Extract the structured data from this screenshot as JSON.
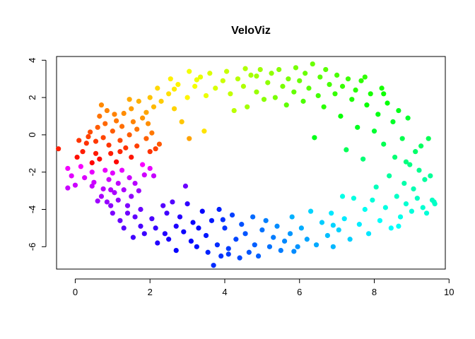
{
  "chart_data": {
    "type": "scatter",
    "title": "VeloViz",
    "xlabel": "",
    "ylabel": "",
    "xlim": [
      -0.5,
      9.9
    ],
    "ylim": [
      -7.2,
      4.2
    ],
    "xticks": [
      0,
      2,
      4,
      6,
      8,
      10
    ],
    "yticks": [
      -6,
      -4,
      -2,
      0,
      2,
      4
    ],
    "xtick_labels": [
      "0",
      "2",
      "4",
      "6",
      "8",
      "10"
    ],
    "ytick_labels": [
      "-6",
      "-4",
      "-2",
      "0",
      "2",
      "4"
    ],
    "grid": false,
    "legend": "none",
    "color_encoding": "rainbow hue by position along the ring (red → orange → yellow → green → cyan → blue → purple → magenta)",
    "points": [
      [
        -0.45,
        -0.75
      ],
      [
        -0.2,
        -1.8
      ],
      [
        -0.2,
        -2.85
      ],
      [
        -0.1,
        -2.2
      ],
      [
        0.0,
        -2.7
      ],
      [
        0.05,
        -1.2
      ],
      [
        0.1,
        -0.3
      ],
      [
        0.15,
        -1.7
      ],
      [
        0.2,
        -0.9
      ],
      [
        0.25,
        -2.3
      ],
      [
        0.3,
        -0.45
      ],
      [
        0.35,
        -0.1
      ],
      [
        0.4,
        0.15
      ],
      [
        0.45,
        -1.5
      ],
      [
        0.45,
        -2.0
      ],
      [
        0.5,
        -2.55
      ],
      [
        0.55,
        -1.0
      ],
      [
        0.6,
        0.4
      ],
      [
        0.6,
        -3.55
      ],
      [
        0.65,
        -1.3
      ],
      [
        0.65,
        1.0
      ],
      [
        0.7,
        1.6
      ],
      [
        0.7,
        -3.3
      ],
      [
        0.75,
        -0.15
      ],
      [
        0.75,
        -2.9
      ],
      [
        0.8,
        0.6
      ],
      [
        0.8,
        -1.9
      ],
      [
        0.85,
        1.3
      ],
      [
        0.85,
        -3.6
      ],
      [
        0.9,
        -2.4
      ],
      [
        0.9,
        -0.55
      ],
      [
        0.95,
        -1.0
      ],
      [
        0.95,
        -3.8
      ],
      [
        1.0,
        0.2
      ],
      [
        1.0,
        -2.05
      ],
      [
        1.0,
        -4.2
      ],
      [
        1.05,
        1.1
      ],
      [
        1.05,
        -3.1
      ],
      [
        1.1,
        0.75
      ],
      [
        1.1,
        -1.45
      ],
      [
        1.15,
        -2.6
      ],
      [
        1.15,
        -3.5
      ],
      [
        1.2,
        -0.3
      ],
      [
        1.2,
        -4.6
      ],
      [
        1.25,
        0.45
      ],
      [
        1.25,
        -1.9
      ],
      [
        1.3,
        1.15
      ],
      [
        1.3,
        -2.95
      ],
      [
        1.3,
        -5.0
      ],
      [
        1.35,
        -0.7
      ],
      [
        1.4,
        -3.8
      ],
      [
        1.4,
        -4.2
      ],
      [
        1.45,
        0.0
      ],
      [
        1.45,
        -2.3
      ],
      [
        1.5,
        1.4
      ],
      [
        1.5,
        -1.2
      ],
      [
        1.5,
        -3.3
      ],
      [
        1.55,
        0.7
      ],
      [
        1.55,
        -5.5
      ],
      [
        1.6,
        -4.4
      ],
      [
        1.6,
        -2.6
      ],
      [
        1.65,
        0.3
      ],
      [
        1.65,
        -0.6
      ],
      [
        1.7,
        1.8
      ],
      [
        1.7,
        -3.0
      ],
      [
        1.75,
        -4.0
      ],
      [
        1.75,
        -4.9
      ],
      [
        1.8,
        0.9
      ],
      [
        1.8,
        -1.6
      ],
      [
        1.85,
        -5.3
      ],
      [
        1.9,
        -0.2
      ],
      [
        1.9,
        1.2
      ],
      [
        1.95,
        0.6
      ],
      [
        2.0,
        -0.9
      ],
      [
        2.0,
        -1.8
      ],
      [
        2.0,
        2.0
      ],
      [
        2.05,
        -4.5
      ],
      [
        2.05,
        0.1
      ],
      [
        2.1,
        1.5
      ],
      [
        2.1,
        -2.2
      ],
      [
        2.15,
        -5.0
      ],
      [
        2.2,
        -5.8
      ],
      [
        2.2,
        2.5
      ],
      [
        2.25,
        -0.5
      ],
      [
        2.3,
        1.8
      ],
      [
        2.35,
        -3.8
      ],
      [
        2.4,
        -5.3
      ],
      [
        2.45,
        -4.2
      ],
      [
        2.5,
        2.2
      ],
      [
        2.5,
        -5.6
      ],
      [
        2.55,
        3.0
      ],
      [
        2.6,
        -3.6
      ],
      [
        2.65,
        1.4
      ],
      [
        2.7,
        -4.9
      ],
      [
        2.7,
        -6.2
      ],
      [
        2.75,
        2.7
      ],
      [
        2.8,
        -4.4
      ],
      [
        2.85,
        0.7
      ],
      [
        2.9,
        -5.2
      ],
      [
        2.95,
        -2.75
      ],
      [
        3.0,
        2.0
      ],
      [
        3.0,
        -3.7
      ],
      [
        3.05,
        -0.2
      ],
      [
        3.05,
        3.4
      ],
      [
        3.1,
        -5.7
      ],
      [
        3.15,
        -4.7
      ],
      [
        3.2,
        2.6
      ],
      [
        3.25,
        -6.0
      ],
      [
        3.3,
        -5.0
      ],
      [
        3.35,
        3.1
      ],
      [
        3.4,
        -4.1
      ],
      [
        3.45,
        0.2
      ],
      [
        3.5,
        2.1
      ],
      [
        3.5,
        -5.4
      ],
      [
        3.55,
        -6.3
      ],
      [
        3.6,
        3.3
      ],
      [
        3.65,
        -4.6
      ],
      [
        3.7,
        -7.0
      ],
      [
        3.75,
        2.5
      ],
      [
        3.8,
        -5.9
      ],
      [
        3.85,
        -4.0
      ],
      [
        3.9,
        -6.5
      ],
      [
        3.95,
        2.9
      ],
      [
        4.0,
        -5.0
      ],
      [
        4.05,
        3.4
      ],
      [
        4.1,
        -6.1
      ],
      [
        4.15,
        2.2
      ],
      [
        4.2,
        -4.3
      ],
      [
        4.25,
        1.3
      ],
      [
        4.3,
        -5.6
      ],
      [
        4.35,
        3.0
      ],
      [
        4.4,
        -6.6
      ],
      [
        4.45,
        -4.8
      ],
      [
        4.5,
        2.6
      ],
      [
        4.55,
        -5.3
      ],
      [
        4.6,
        1.5
      ],
      [
        4.65,
        -6.3
      ],
      [
        4.7,
        3.2
      ],
      [
        4.75,
        -4.4
      ],
      [
        4.8,
        -5.9
      ],
      [
        4.85,
        2.3
      ],
      [
        4.9,
        -6.5
      ],
      [
        4.95,
        3.5
      ],
      [
        5.0,
        -5.1
      ],
      [
        5.05,
        1.9
      ],
      [
        5.1,
        -4.6
      ],
      [
        5.15,
        2.8
      ],
      [
        5.2,
        -6.0
      ],
      [
        5.25,
        3.3
      ],
      [
        5.3,
        -5.5
      ],
      [
        5.35,
        2.0
      ],
      [
        5.4,
        -4.9
      ],
      [
        5.45,
        3.5
      ],
      [
        5.5,
        -6.2
      ],
      [
        5.55,
        2.6
      ],
      [
        5.6,
        -5.7
      ],
      [
        5.65,
        1.6
      ],
      [
        5.7,
        3.0
      ],
      [
        5.75,
        -5.3
      ],
      [
        5.8,
        -4.4
      ],
      [
        5.85,
        2.3
      ],
      [
        5.9,
        3.6
      ],
      [
        5.95,
        -6.0
      ],
      [
        6.0,
        2.9
      ],
      [
        6.05,
        -5.0
      ],
      [
        6.1,
        1.8
      ],
      [
        6.15,
        3.3
      ],
      [
        6.2,
        -5.6
      ],
      [
        6.25,
        2.5
      ],
      [
        6.3,
        -4.1
      ],
      [
        6.35,
        3.8
      ],
      [
        6.4,
        -0.15
      ],
      [
        6.45,
        -5.9
      ],
      [
        6.5,
        2.1
      ],
      [
        6.55,
        3.1
      ],
      [
        6.6,
        -4.7
      ],
      [
        6.65,
        1.5
      ],
      [
        6.7,
        3.5
      ],
      [
        6.75,
        -5.4
      ],
      [
        6.8,
        2.7
      ],
      [
        6.85,
        -4.2
      ],
      [
        6.9,
        -6.0
      ],
      [
        6.95,
        2.2
      ],
      [
        7.0,
        3.2
      ],
      [
        7.05,
        -5.1
      ],
      [
        7.1,
        1.0
      ],
      [
        7.15,
        2.6
      ],
      [
        7.2,
        -4.5
      ],
      [
        7.25,
        -0.8
      ],
      [
        7.3,
        3.0
      ],
      [
        7.35,
        -5.6
      ],
      [
        7.4,
        1.9
      ],
      [
        7.45,
        -3.4
      ],
      [
        7.5,
        2.4
      ],
      [
        7.55,
        0.4
      ],
      [
        7.6,
        -4.8
      ],
      [
        7.65,
        2.9
      ],
      [
        7.7,
        -1.3
      ],
      [
        7.75,
        -4.0
      ],
      [
        7.8,
        1.6
      ],
      [
        7.85,
        -5.3
      ],
      [
        7.9,
        2.2
      ],
      [
        7.95,
        -3.5
      ],
      [
        8.0,
        0.2
      ],
      [
        8.05,
        -2.8
      ],
      [
        8.1,
        1.1
      ],
      [
        8.15,
        -4.6
      ],
      [
        8.2,
        2.5
      ],
      [
        8.25,
        -0.5
      ],
      [
        8.3,
        -3.9
      ],
      [
        8.35,
        1.7
      ],
      [
        8.4,
        -2.2
      ],
      [
        8.45,
        -5.0
      ],
      [
        8.5,
        0.7
      ],
      [
        8.55,
        -1.2
      ],
      [
        8.6,
        -3.3
      ],
      [
        8.65,
        1.3
      ],
      [
        8.7,
        -4.4
      ],
      [
        8.75,
        -0.2
      ],
      [
        8.8,
        -2.6
      ],
      [
        8.85,
        -3.7
      ],
      [
        8.9,
        0.9
      ],
      [
        8.95,
        -1.6
      ],
      [
        9.0,
        -4.1
      ],
      [
        9.05,
        -2.9
      ],
      [
        9.1,
        -0.9
      ],
      [
        9.15,
        -3.4
      ],
      [
        9.2,
        -1.9
      ],
      [
        9.25,
        -0.6
      ],
      [
        9.3,
        -3.9
      ],
      [
        9.35,
        -2.4
      ],
      [
        9.4,
        -4.2
      ],
      [
        9.45,
        -0.2
      ],
      [
        9.5,
        -2.2
      ],
      [
        9.55,
        -3.5
      ],
      [
        9.6,
        -3.6
      ],
      [
        9.62,
        -3.7
      ],
      [
        0.95,
        -2.95
      ],
      [
        1.2,
        -0.9
      ],
      [
        0.55,
        -0.35
      ],
      [
        1.85,
        -2.15
      ],
      [
        2.15,
        -0.75
      ],
      [
        4.1,
        -6.4
      ],
      [
        3.95,
        -4.55
      ],
      [
        5.85,
        -6.25
      ],
      [
        6.9,
        -4.85
      ],
      [
        8.65,
        -4.9
      ],
      [
        8.25,
        2.2
      ],
      [
        7.75,
        3.1
      ],
      [
        4.85,
        3.15
      ],
      [
        4.55,
        3.55
      ],
      [
        3.25,
        2.95
      ],
      [
        2.65,
        2.45
      ],
      [
        1.45,
        1.9
      ],
      [
        0.45,
        -2.75
      ],
      [
        7.15,
        -3.3
      ],
      [
        8.85,
        -1.45
      ]
    ]
  }
}
